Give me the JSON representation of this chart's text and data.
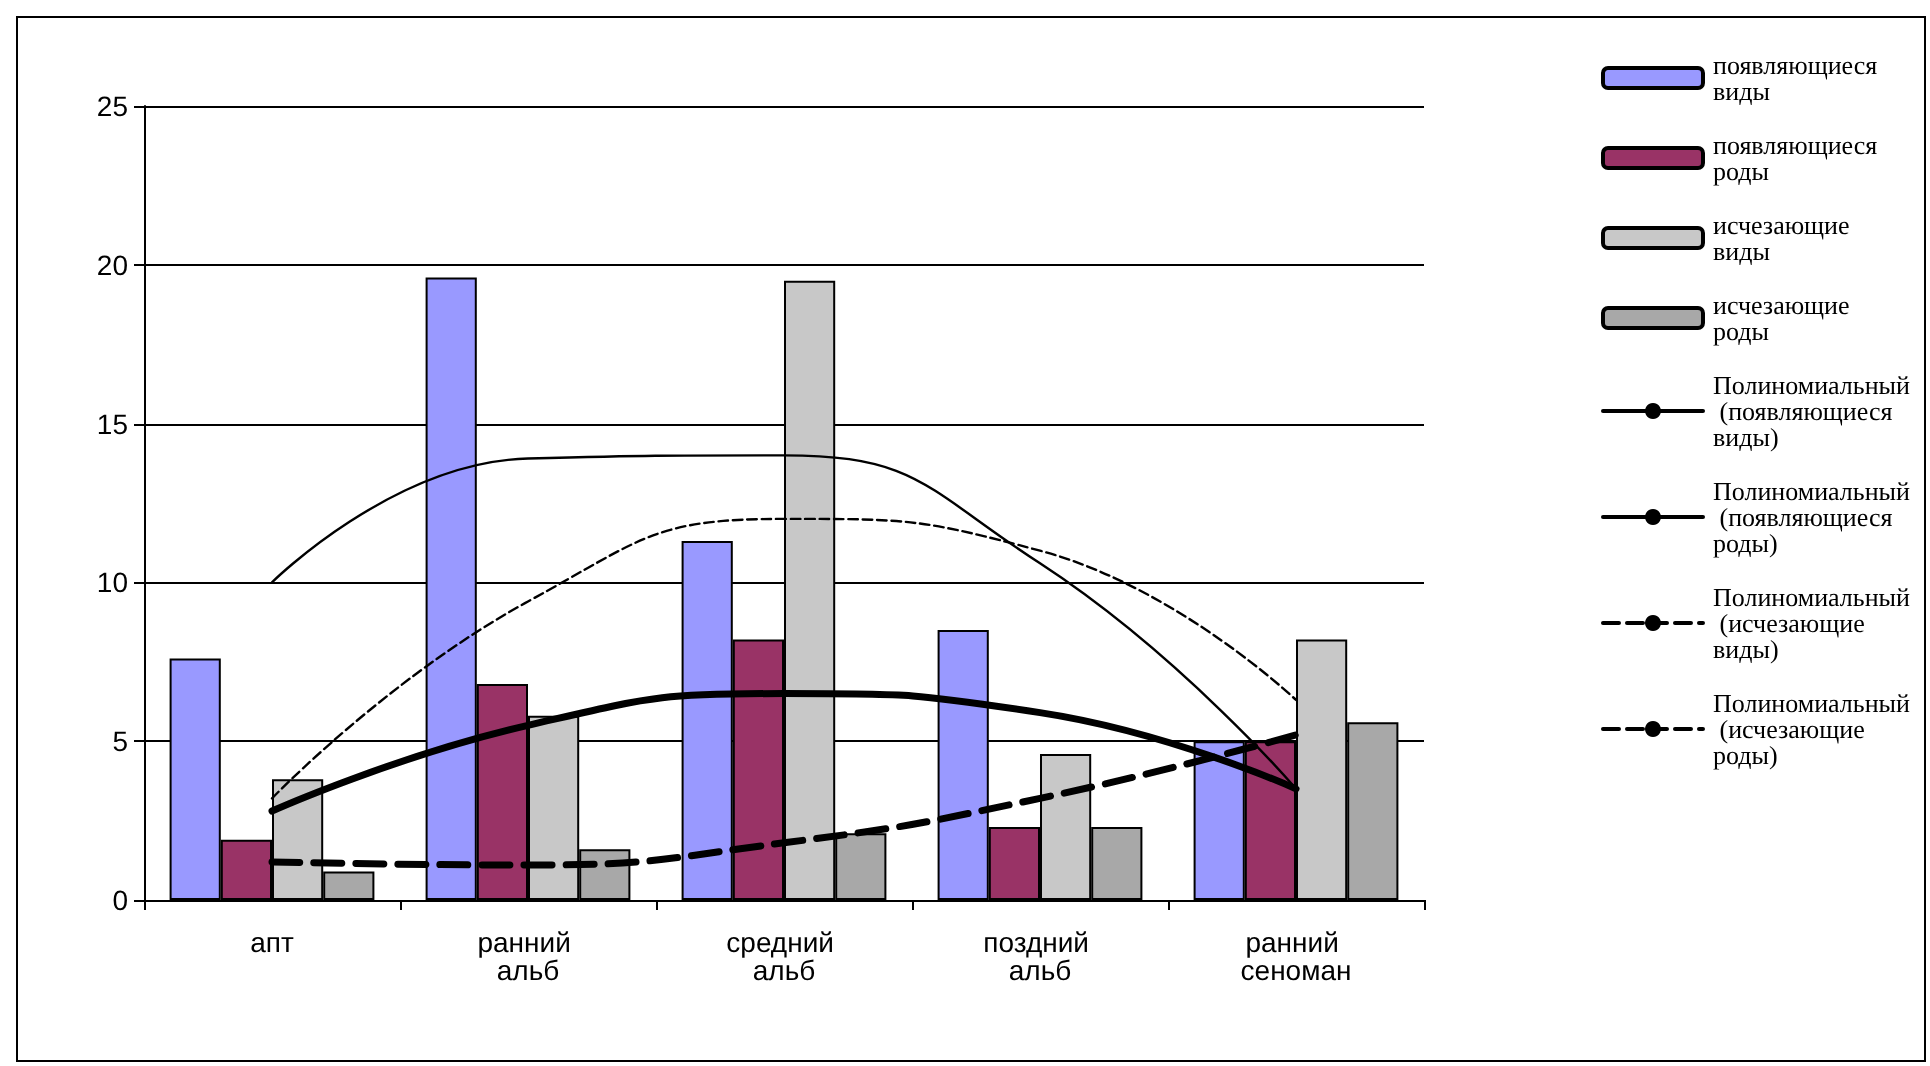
{
  "chart_data": {
    "type": "bar",
    "categories": [
      "апт",
      "ранний альб",
      "средний альб",
      "поздний альб",
      "ранний сеноман"
    ],
    "series": [
      {
        "name": "появляющиеся виды",
        "color": "#9999ff",
        "values": [
          7.6,
          19.6,
          11.3,
          8.5,
          5.0
        ]
      },
      {
        "name": "появляющиеся роды",
        "color": "#993366",
        "values": [
          1.9,
          6.8,
          8.2,
          2.3,
          5.0
        ]
      },
      {
        "name": "исчезающие виды",
        "color": "#c8c8c8",
        "values": [
          3.8,
          5.8,
          19.5,
          4.6,
          8.2
        ]
      },
      {
        "name": "исчезающие роды",
        "color": "#a8a8a8",
        "values": [
          0.9,
          1.6,
          2.1,
          2.3,
          5.6
        ]
      },
      {
        "type": "line",
        "name": "Полиномиальный (появляющиеся виды)",
        "color": "#000000",
        "line_style": "solid",
        "values": [
          10.0,
          13.9,
          14.0,
          10.6,
          3.5
        ]
      },
      {
        "type": "line",
        "name": "Полиномиальный (появляющиеся роды)",
        "color": "#000000",
        "line_style": "solid",
        "values": [
          2.8,
          5.5,
          6.5,
          5.9,
          3.5
        ]
      },
      {
        "type": "line",
        "name": "Полиномиальный (исчезающие виды)",
        "color": "#000000",
        "line_style": "dashed",
        "values": [
          3.2,
          9.4,
          12.0,
          11.0,
          6.3
        ]
      },
      {
        "type": "line",
        "name": "Полиномиальный (исчезающие роды)",
        "color": "#000000",
        "line_style": "dashed",
        "values": [
          1.2,
          1.1,
          1.8,
          3.2,
          5.2
        ]
      }
    ],
    "ylim": [
      0,
      25
    ],
    "yticks": [
      0,
      5,
      10,
      15,
      20,
      25
    ],
    "grid": "y",
    "legend": "right",
    "marker": "none"
  }
}
